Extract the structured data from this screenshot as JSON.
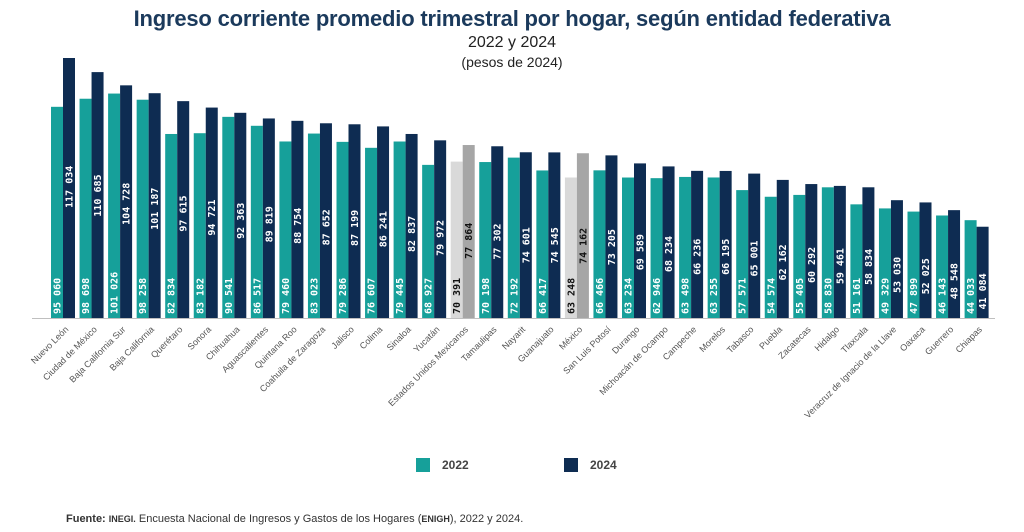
{
  "chart_data": {
    "type": "bar",
    "title": "Ingreso corriente promedio trimestral por hogar, según entidad federativa",
    "subtitle": "2022 y 2024",
    "subtitle2": "(pesos de 2024)",
    "xlabel": "",
    "ylabel": "",
    "ylim": [
      0,
      120000
    ],
    "grid": false,
    "legend_position": "bottom",
    "highlight_categories": [
      "Estados Unidos Mexicanos",
      "México"
    ],
    "colors": {
      "2022": "#16a09a",
      "2024": "#0e2c52",
      "highlight_2022": "#d9d9d9",
      "highlight_2024": "#a6a6a6",
      "label_light": "#ffffff",
      "label_dark": "#111111"
    },
    "categories": [
      "Nuevo León",
      "Ciudad de México",
      "Baja California Sur",
      "Baja California",
      "Querétaro",
      "Sonora",
      "Chihuahua",
      "Aguascalientes",
      "Quintana Roo",
      "Coahuila de Zaragoza",
      "Jalisco",
      "Colima",
      "Sinaloa",
      "Yucatán",
      "Estados Unidos Mexicanos",
      "Tamaulipas",
      "Nayarit",
      "Guanajuato",
      "México",
      "San Luis Potosí",
      "Durango",
      "Michoacán de Ocampo",
      "Campeche",
      "Morelos",
      "Tabasco",
      "Puebla",
      "Zacatecas",
      "Hidalgo",
      "Tlaxcala",
      "Veracruz de Ignacio de la Llave",
      "Oaxaca",
      "Guerrero",
      "Chiapas"
    ],
    "series": [
      {
        "name": "2022",
        "values": [
          95060,
          98698,
          101026,
          98258,
          82834,
          83182,
          90541,
          86517,
          79460,
          83023,
          79286,
          76607,
          79445,
          68927,
          70391,
          70198,
          72192,
          66417,
          63248,
          66466,
          63234,
          62946,
          63498,
          63255,
          57571,
          54574,
          55405,
          58830,
          51161,
          49329,
          47899,
          46143,
          44033
        ]
      },
      {
        "name": "2024",
        "values": [
          117034,
          110685,
          104728,
          101187,
          97615,
          94721,
          92363,
          89819,
          88754,
          87652,
          87199,
          86241,
          82837,
          79972,
          77864,
          77302,
          74601,
          74545,
          74162,
          73205,
          69589,
          68234,
          66236,
          66195,
          65001,
          62162,
          60292,
          59461,
          58834,
          53030,
          52025,
          48548,
          41084
        ]
      }
    ]
  },
  "legend": {
    "items": [
      {
        "label": "2022",
        "color": "#16a09a"
      },
      {
        "label": "2024",
        "color": "#0e2c52"
      }
    ]
  },
  "source": {
    "prefix": "Fuente:",
    "org": "INEGI.",
    "text_a": " Encuesta Nacional de Ingresos y Gastos de los Hogares (",
    "abbr": "ENIGH",
    "text_b": "), 2022 y 2024."
  }
}
